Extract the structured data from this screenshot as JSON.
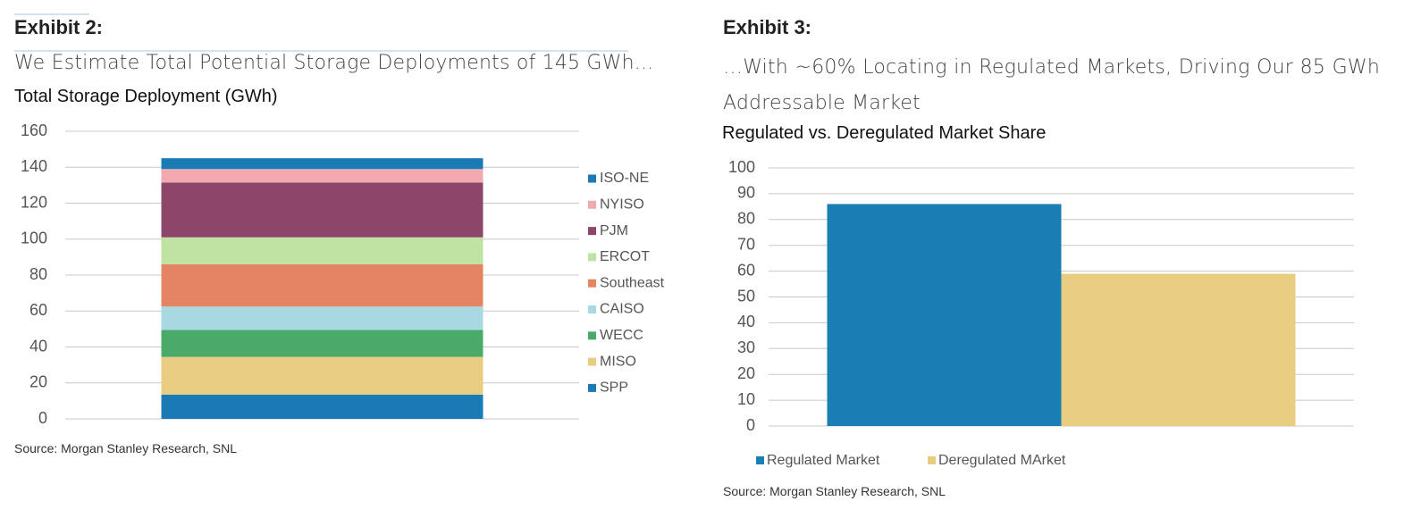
{
  "chart_data": [
    {
      "type": "bar",
      "stacked": true,
      "exhibit": "Exhibit 2:",
      "subtitle": "We Estimate Total Potential Storage Deployments of 145 GWh...",
      "title": "Total Storage Deployment (GWh)",
      "source": "Source: Morgan Stanley Research, SNL",
      "categories": [
        null
      ],
      "ylim": [
        0,
        160
      ],
      "yticks": [
        0,
        20,
        40,
        60,
        80,
        100,
        120,
        140,
        160
      ],
      "grid": true,
      "legend": "right",
      "series": [
        {
          "name": "SPP",
          "color": "#1a7ab5",
          "values": [
            13.5
          ]
        },
        {
          "name": "MISO",
          "color": "#e8cc80",
          "values": [
            21
          ]
        },
        {
          "name": "WECC",
          "color": "#4aaa6a",
          "values": [
            15
          ]
        },
        {
          "name": "CAISO",
          "color": "#a8d8e2",
          "values": [
            13
          ]
        },
        {
          "name": "Southeast",
          "color": "#e58463",
          "values": [
            23.5
          ]
        },
        {
          "name": "ERCOT",
          "color": "#bee3a2",
          "values": [
            15
          ]
        },
        {
          "name": "PJM",
          "color": "#8c4669",
          "values": [
            30.5
          ]
        },
        {
          "name": "NYISO",
          "color": "#f2a9b0",
          "values": [
            7.5
          ]
        },
        {
          "name": "ISO-NE",
          "color": "#1a7ab5",
          "values": [
            6
          ]
        }
      ]
    },
    {
      "type": "bar",
      "stacked": false,
      "exhibit": "Exhibit 3:",
      "subtitle": "…With ~60% Locating in Regulated Markets, Driving Our 85 GWh Addressable Market",
      "title": "Regulated vs. Deregulated Market Share",
      "source": "Source: Morgan Stanley Research, SNL",
      "categories": [
        null
      ],
      "ylim": [
        0,
        100
      ],
      "yticks": [
        0,
        10,
        20,
        30,
        40,
        50,
        60,
        70,
        80,
        90,
        100
      ],
      "grid": true,
      "legend": "bottom",
      "series": [
        {
          "name": "Regulated Market",
          "color": "#1a7db3",
          "values": [
            86
          ]
        },
        {
          "name": "Deregulated MArket",
          "color": "#e8cd80",
          "values": [
            59
          ]
        }
      ]
    }
  ]
}
